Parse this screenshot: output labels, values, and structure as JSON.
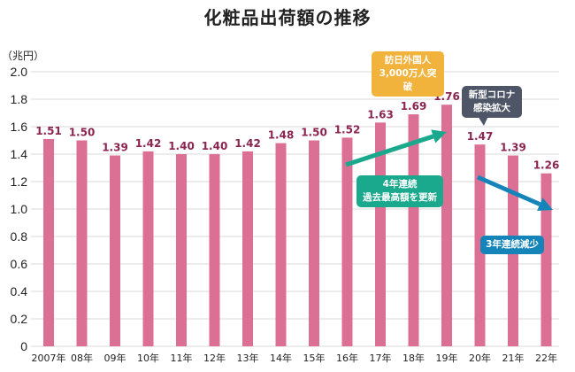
{
  "chart_data": {
    "type": "bar",
    "title": "化粧品出荷額の推移",
    "ylabel": "（兆円）",
    "categories": [
      "2007年",
      "08年",
      "09年",
      "10年",
      "11年",
      "12年",
      "13年",
      "14年",
      "15年",
      "16年",
      "17年",
      "18年",
      "19年",
      "20年",
      "21年",
      "22年"
    ],
    "values": [
      1.51,
      1.5,
      1.39,
      1.42,
      1.4,
      1.4,
      1.42,
      1.48,
      1.5,
      1.52,
      1.63,
      1.69,
      1.76,
      1.47,
      1.39,
      1.26
    ],
    "value_labels": [
      "1.51",
      "1.50",
      "1.39",
      "1.42",
      "1.40",
      "1.40",
      "1.42",
      "1.48",
      "1.50",
      "1.52",
      "1.63",
      "1.69",
      "1.76",
      "1.47",
      "1.39",
      "1.26"
    ],
    "ylim": [
      0,
      2.0
    ],
    "yticks": [
      "0",
      "0.2",
      "0.4",
      "0.6",
      "0.8",
      "1.0",
      "1.2",
      "1.4",
      "1.6",
      "1.8",
      "2.0"
    ],
    "grid": true,
    "colors": {
      "bar": "#dc7094",
      "value_label": "#8a2450",
      "grid": "#d8d8d8"
    },
    "annotations": [
      {
        "text_lines": [
          "訪日外国人",
          "3,000万人突破"
        ],
        "color": "#f2b33d"
      },
      {
        "text_lines": [
          "新型コロナ",
          "感染拡大"
        ],
        "color": "#4d5567"
      },
      {
        "text_lines": [
          "4年連続",
          "過去最高額を更新"
        ],
        "color": "#1ba98d"
      },
      {
        "text_lines": [
          "3年連続減少"
        ],
        "color": "#1585b9"
      }
    ]
  }
}
